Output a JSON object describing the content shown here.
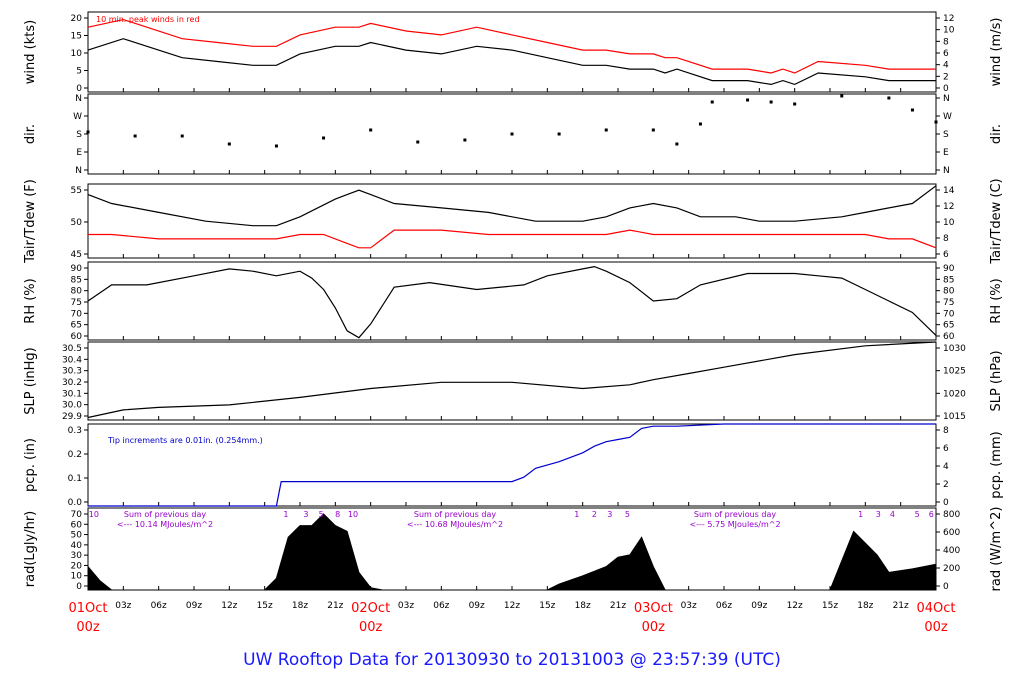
{
  "title": "UW Rooftop Data for 20130930  to  20131003 @ 23:57:39  (UTC)",
  "colors": {
    "black": "#000000",
    "red": "#ff0000",
    "blue": "#0000cc",
    "purple": "#9900cc",
    "title": "#1a1aff"
  },
  "chart_data": {
    "type": "line",
    "x_axis": {
      "range_hours": [
        0,
        72
      ],
      "tick_labels": [
        "03z",
        "06z",
        "09z",
        "12z",
        "15z",
        "18z",
        "21z",
        "03z",
        "06z",
        "09z",
        "12z",
        "15z",
        "18z",
        "21z",
        "03z",
        "06z",
        "09z",
        "12z",
        "15z",
        "18z",
        "21z"
      ],
      "date_labels": [
        {
          "date": "01Oct",
          "time": "00z"
        },
        {
          "date": "02Oct",
          "time": "00z"
        },
        {
          "date": "03Oct",
          "time": "00z"
        },
        {
          "date": "04Oct",
          "time": "00z"
        }
      ]
    },
    "panels": [
      {
        "id": "wind",
        "type": "line",
        "ylabel_left": "wind (kts)",
        "ylabel_right": "wind (m/s)",
        "ylim": [
          0,
          21
        ],
        "yticks_left": [
          "0",
          "5",
          "10",
          "15",
          "20"
        ],
        "yticks_right": [
          "0",
          "2",
          "4",
          "6",
          "8",
          "10",
          "12"
        ],
        "annotation": "10 min. peak winds in red",
        "series": [
          {
            "name": "wind",
            "color": "#000000",
            "x": [
              0,
              3,
              5,
              8,
              11,
              14,
              16,
              18,
              21,
              23,
              24,
              27,
              30,
              33,
              36,
              39,
              42,
              44,
              46,
              48,
              49,
              50,
              53,
              56,
              58,
              59,
              60,
              62,
              66,
              68,
              70,
              72
            ],
            "y": [
              11,
              14,
              12,
              9,
              8,
              7,
              7,
              10,
              12,
              12,
              13,
              11,
              10,
              12,
              11,
              9,
              7,
              7,
              6,
              6,
              5,
              6,
              3,
              3,
              2,
              3,
              2,
              5,
              4,
              3,
              3,
              3
            ]
          },
          {
            "name": "10 min. peak winds",
            "color": "#ff0000",
            "x": [
              0,
              3,
              5,
              8,
              11,
              14,
              16,
              18,
              21,
              23,
              24,
              27,
              30,
              33,
              36,
              39,
              42,
              44,
              46,
              48,
              49,
              50,
              53,
              56,
              58,
              59,
              60,
              62,
              66,
              68,
              70,
              72
            ],
            "y": [
              17,
              19,
              17,
              14,
              13,
              12,
              12,
              15,
              17,
              17,
              18,
              16,
              15,
              17,
              15,
              13,
              11,
              11,
              10,
              10,
              9,
              9,
              6,
              6,
              5,
              6,
              5,
              8,
              7,
              6,
              6,
              6
            ]
          }
        ]
      },
      {
        "id": "dir",
        "type": "scatter",
        "ylabel_left": "dir.",
        "ylabel_right": "dir.",
        "yticks_left": [
          "N",
          "E",
          "S",
          "W",
          "N"
        ],
        "yticks_right": [
          "N",
          "E",
          "S",
          "W",
          "N"
        ],
        "series": [
          {
            "name": "direction",
            "color": "#000000",
            "x": [
              0,
              4,
              8,
              12,
              16,
              20,
              24,
              28,
              32,
              36,
              40,
              44,
              48,
              50,
              52,
              53,
              56,
              58,
              60,
              64,
              68,
              70,
              72
            ],
            "y": [
              2.1,
              1.9,
              1.9,
              1.5,
              1.4,
              1.8,
              2.2,
              1.6,
              1.7,
              2.0,
              2.0,
              2.2,
              2.2,
              1.5,
              2.5,
              3.6,
              3.7,
              3.6,
              3.5,
              3.9,
              3.8,
              3.2,
              2.6
            ]
          }
        ]
      },
      {
        "id": "temp",
        "type": "line",
        "ylabel_left": "Tair/Tdew (F)",
        "ylabel_right": "Tair/Tdew (C)",
        "ylim": [
          41.7,
          58.4
        ],
        "yticks_left": [
          "45",
          "50",
          "55"
        ],
        "yticks_right": [
          "6",
          "8",
          "10",
          "12",
          "14"
        ],
        "series": [
          {
            "name": "Tair",
            "color": "#000000",
            "x": [
              0,
              2,
              6,
              10,
              14,
              16,
              18,
              21,
              22,
              23,
              24,
              26,
              30,
              34,
              38,
              40,
              42,
              44,
              46,
              48,
              50,
              52,
              55,
              57,
              60,
              64,
              66,
              68,
              70,
              72
            ],
            "y": [
              56,
              54,
              52,
              50,
              49,
              49,
              51,
              55,
              56,
              57,
              56,
              54,
              53,
              52,
              50,
              50,
              50,
              51,
              53,
              54,
              53,
              51,
              51,
              50,
              50,
              51,
              52,
              53,
              54,
              58
            ]
          },
          {
            "name": "Tdew",
            "color": "#ff0000",
            "x": [
              0,
              2,
              6,
              10,
              14,
              16,
              18,
              20,
              22,
              23,
              24,
              26,
              30,
              34,
              38,
              42,
              44,
              46,
              48,
              50,
              54,
              58,
              62,
              66,
              68,
              70,
              72
            ],
            "y": [
              47,
              47,
              46,
              46,
              46,
              46,
              47,
              47,
              45,
              44,
              44,
              48,
              48,
              47,
              47,
              47,
              47,
              48,
              47,
              47,
              47,
              47,
              47,
              47,
              46,
              46,
              44
            ]
          }
        ]
      },
      {
        "id": "rh",
        "type": "line",
        "ylabel_left": "RH (%)",
        "ylabel_right": "RH (%)",
        "ylim": [
          58,
          92
        ],
        "yticks_left": [
          "60",
          "65",
          "70",
          "75",
          "80",
          "85",
          "90"
        ],
        "yticks_right": [
          "60",
          "65",
          "70",
          "75",
          "80",
          "85",
          "90"
        ],
        "series": [
          {
            "name": "RH",
            "color": "#000000",
            "x": [
              0,
              2,
              5,
              9,
              12,
              14,
              16,
              18,
              19,
              20,
              21,
              22,
              23,
              24,
              26,
              29,
              33,
              37,
              39,
              42,
              43,
              44,
              46,
              48,
              50,
              52,
              56,
              60,
              62,
              64,
              66,
              68,
              70,
              72
            ],
            "y": [
              75,
              82,
              82,
              86,
              89,
              88,
              86,
              88,
              85,
              80,
              72,
              62,
              59,
              65,
              81,
              83,
              80,
              82,
              86,
              89,
              90,
              88,
              83,
              75,
              76,
              82,
              87,
              87,
              86,
              85,
              80,
              75,
              70,
              60
            ]
          }
        ]
      },
      {
        "id": "slp",
        "type": "line",
        "ylabel_left": "SLP (inHg)",
        "ylabel_right": "SLP (hPa)",
        "ylim": [
          29.88,
          30.5
        ],
        "yticks_left": [
          "29.9",
          "30.0",
          "30.1",
          "30.2",
          "30.3",
          "30.4",
          "30.5"
        ],
        "yticks_right": [
          "1015",
          "1020",
          "1025",
          "1030"
        ],
        "series": [
          {
            "name": "SLP",
            "color": "#000000",
            "x": [
              0,
              3,
              6,
              12,
              18,
              24,
              30,
              36,
              42,
              46,
              48,
              51,
              54,
              60,
              66,
              72
            ],
            "y": [
              29.9,
              29.96,
              29.98,
              30.0,
              30.06,
              30.13,
              30.18,
              30.18,
              30.13,
              30.16,
              30.2,
              30.25,
              30.3,
              30.4,
              30.47,
              30.5
            ]
          }
        ]
      },
      {
        "id": "pcp",
        "type": "line",
        "ylabel_left": "pcp. (in)",
        "ylabel_right": "pcp. (mm)",
        "ylim": [
          0,
          0.37
        ],
        "yticks_left": [
          "0.0",
          "0.1",
          "0.2",
          "0.3"
        ],
        "yticks_right": [
          "0",
          "2",
          "4",
          "6",
          "8"
        ],
        "annotation": "Tip increments are 0.01in. (0.254mm.)",
        "series": [
          {
            "name": "precip",
            "color": "#0000cc",
            "x": [
              0,
              16,
              16.4,
              36,
              37,
              38,
              40,
              42,
              43,
              44,
              45,
              46,
              47,
              48,
              50,
              54,
              72
            ],
            "y": [
              0,
              0,
              0.11,
              0.11,
              0.13,
              0.17,
              0.2,
              0.24,
              0.27,
              0.29,
              0.3,
              0.31,
              0.35,
              0.36,
              0.36,
              0.37,
              0.37
            ]
          }
        ]
      },
      {
        "id": "rad",
        "type": "area",
        "ylabel_left": "rad(Lgly/hr)",
        "ylabel_right": "rad (W/m^2)",
        "ylim": [
          0,
          70
        ],
        "yticks_left": [
          "0",
          "10",
          "20",
          "30",
          "40",
          "50",
          "60",
          "70"
        ],
        "yticks_right": [
          "0",
          "200",
          "400",
          "600",
          "800"
        ],
        "series": [
          {
            "name": "radiation",
            "color": "#000000",
            "x": [
              0,
              1,
              2,
              15,
              16,
              17,
              18,
              19,
              20,
              21,
              22,
              23,
              24,
              25,
              39,
              40,
              42,
              44,
              45,
              46,
              47,
              48,
              49,
              63,
              64,
              65,
              66,
              67,
              68,
              70,
              72
            ],
            "y": [
              20,
              8,
              0,
              0,
              10,
              45,
              55,
              55,
              65,
              55,
              50,
              15,
              2,
              0,
              0,
              5,
              12,
              20,
              28,
              30,
              45,
              20,
              0,
              0,
              25,
              50,
              40,
              30,
              15,
              18,
              22
            ]
          }
        ],
        "day_sums": [
          {
            "text": "Sum of previous day",
            "value": "<--- 10.14 MJoules/m^2"
          },
          {
            "text": "Sum of previous day",
            "value": "<--- 10.68 MJoules/m^2"
          },
          {
            "text": "Sum of previous day",
            "value": "<--- 5.75 MJoules/m^2"
          }
        ],
        "hour_markers": [
          {
            "x": 0.5,
            "label": "10"
          },
          {
            "x": 16.8,
            "label": "1"
          },
          {
            "x": 18.5,
            "label": "3"
          },
          {
            "x": 19.8,
            "label": "5"
          },
          {
            "x": 21.2,
            "label": "8"
          },
          {
            "x": 22.5,
            "label": "10"
          },
          {
            "x": 41.5,
            "label": "1"
          },
          {
            "x": 43,
            "label": "2"
          },
          {
            "x": 44.3,
            "label": "3"
          },
          {
            "x": 45.8,
            "label": "5"
          },
          {
            "x": 65.6,
            "label": "1"
          },
          {
            "x": 67.1,
            "label": "3"
          },
          {
            "x": 68.3,
            "label": "4"
          },
          {
            "x": 70.4,
            "label": "5"
          },
          {
            "x": 71.6,
            "label": "6"
          }
        ]
      }
    ]
  }
}
